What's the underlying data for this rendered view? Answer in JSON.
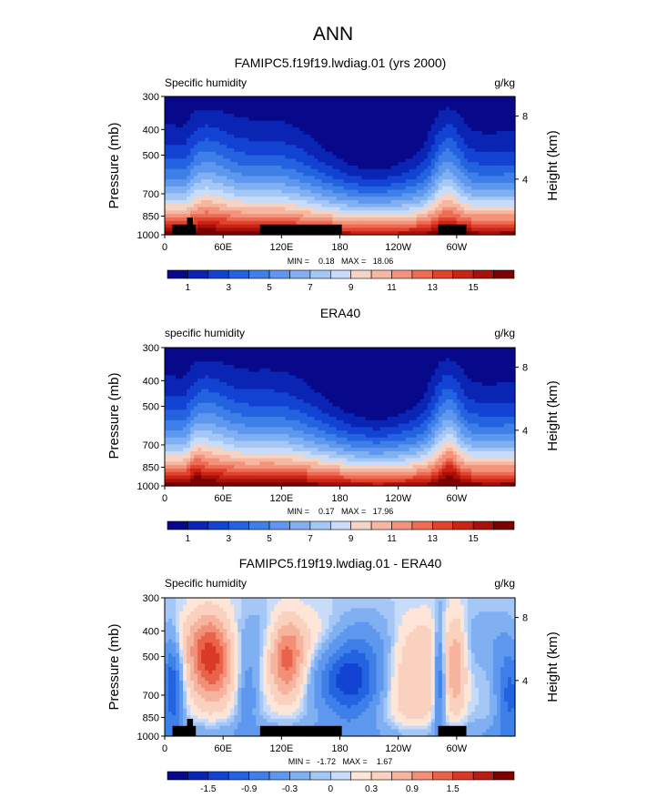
{
  "figure": {
    "title": "ANN"
  },
  "palette": {
    "positive": [
      "#08088a",
      "#0a24b4",
      "#1343d3",
      "#2463e0",
      "#3f7fe8",
      "#5e98ee",
      "#80b0f2",
      "#a4c7f6",
      "#c8dcf9",
      "#f5d4c4",
      "#f7b6a0",
      "#f5937a",
      "#ee6b54",
      "#e2432f",
      "#cc2414",
      "#a8100a",
      "#7c0000"
    ],
    "diverging": [
      "#08088a",
      "#0a24b4",
      "#1343d3",
      "#2463e0",
      "#3f7fe8",
      "#5e98ee",
      "#80b0f2",
      "#a4c7f6",
      "#c8dcf9",
      "#fde5d8",
      "#fad0bf",
      "#f6b39d",
      "#f28f76",
      "#e9634b",
      "#d93a27",
      "#b91c12",
      "#7c0000"
    ],
    "land": "#000000"
  },
  "chart_data": [
    {
      "type": "heatmap",
      "title": "FAMIPC5.f19f19.lwdiag.01 (yrs 2000)",
      "left_label": "Specific humidity",
      "units_label": "g/kg",
      "ylabel": "Pressure (mb)",
      "right_label": "Height (km)",
      "xticks": [
        "0",
        "60E",
        "120E",
        "180",
        "120W",
        "60W"
      ],
      "xtick_values": [
        0,
        60,
        120,
        180,
        240,
        300
      ],
      "xlim": [
        0,
        360
      ],
      "yticks": [
        300,
        400,
        500,
        700,
        850,
        1000
      ],
      "ylim": [
        300,
        1000
      ],
      "height_ticks": [
        8,
        4
      ],
      "height_values_mb": [
        356,
        616
      ],
      "stats_text": "MIN =    0.18   MAX =   18.06",
      "min": 0.18,
      "max": 18.06,
      "colorbar_labels": [
        "1",
        "3",
        "5",
        "7",
        "9",
        "11",
        "13",
        "15"
      ],
      "colorbar_levels": [
        1,
        2,
        3,
        4,
        5,
        6,
        7,
        8,
        9,
        10,
        11,
        12,
        13,
        14,
        15,
        16
      ],
      "land_blocks": [
        {
          "x0": 8,
          "x1": 32,
          "p0": 915
        },
        {
          "x0": 23,
          "x1": 29,
          "p0": 860
        },
        {
          "x0": 98,
          "x1": 182,
          "p0": 915
        },
        {
          "x0": 281,
          "x1": 310,
          "p0": 915
        }
      ],
      "field": "model"
    },
    {
      "type": "heatmap",
      "title": "ERA40",
      "left_label": "specific humidity",
      "units_label": "g/kg",
      "ylabel": "Pressure (mb)",
      "right_label": "Height (km)",
      "xticks": [
        "0",
        "60E",
        "120E",
        "180",
        "120W",
        "60W"
      ],
      "xtick_values": [
        0,
        60,
        120,
        180,
        240,
        300
      ],
      "xlim": [
        0,
        360
      ],
      "yticks": [
        300,
        400,
        500,
        700,
        850,
        1000
      ],
      "ylim": [
        300,
        1000
      ],
      "height_ticks": [
        8,
        4
      ],
      "height_values_mb": [
        356,
        616
      ],
      "stats_text": "MIN =    0.17   MAX =   17.96",
      "min": 0.17,
      "max": 17.96,
      "colorbar_labels": [
        "1",
        "3",
        "5",
        "7",
        "9",
        "11",
        "13",
        "15"
      ],
      "colorbar_levels": [
        1,
        2,
        3,
        4,
        5,
        6,
        7,
        8,
        9,
        10,
        11,
        12,
        13,
        14,
        15,
        16
      ],
      "land_blocks": [],
      "field": "obs"
    },
    {
      "type": "heatmap",
      "title": "FAMIPC5.f19f19.lwdiag.01 - ERA40",
      "left_label": "Specific humidity",
      "units_label": "g/kg",
      "ylabel": "Pressure (mb)",
      "right_label": "Height (km)",
      "xticks": [
        "0",
        "60E",
        "120E",
        "180",
        "120W",
        "60W"
      ],
      "xtick_values": [
        0,
        60,
        120,
        180,
        240,
        300
      ],
      "xlim": [
        0,
        360
      ],
      "yticks": [
        300,
        400,
        500,
        700,
        850,
        1000
      ],
      "ylim": [
        300,
        1000
      ],
      "height_ticks": [
        8,
        4
      ],
      "height_values_mb": [
        356,
        616
      ],
      "stats_text": "MIN =   -1.72   MAX =    1.67",
      "min": -1.72,
      "max": 1.67,
      "colorbar_labels": [
        "-1.5",
        "-0.9",
        "-0.3",
        "0",
        "0.3",
        "0.9",
        "1.5"
      ],
      "colorbar_levels": [
        -1.8,
        -1.5,
        -1.2,
        -0.9,
        -0.6,
        -0.3,
        -0.1,
        0,
        0.1,
        0.3,
        0.6,
        0.9,
        1.2,
        1.5,
        1.8,
        2.1
      ],
      "land_blocks": [
        {
          "x0": 8,
          "x1": 32,
          "p0": 915
        },
        {
          "x0": 23,
          "x1": 29,
          "p0": 860
        },
        {
          "x0": 98,
          "x1": 182,
          "p0": 915
        },
        {
          "x0": 281,
          "x1": 310,
          "p0": 915
        }
      ],
      "field": "diff"
    }
  ]
}
